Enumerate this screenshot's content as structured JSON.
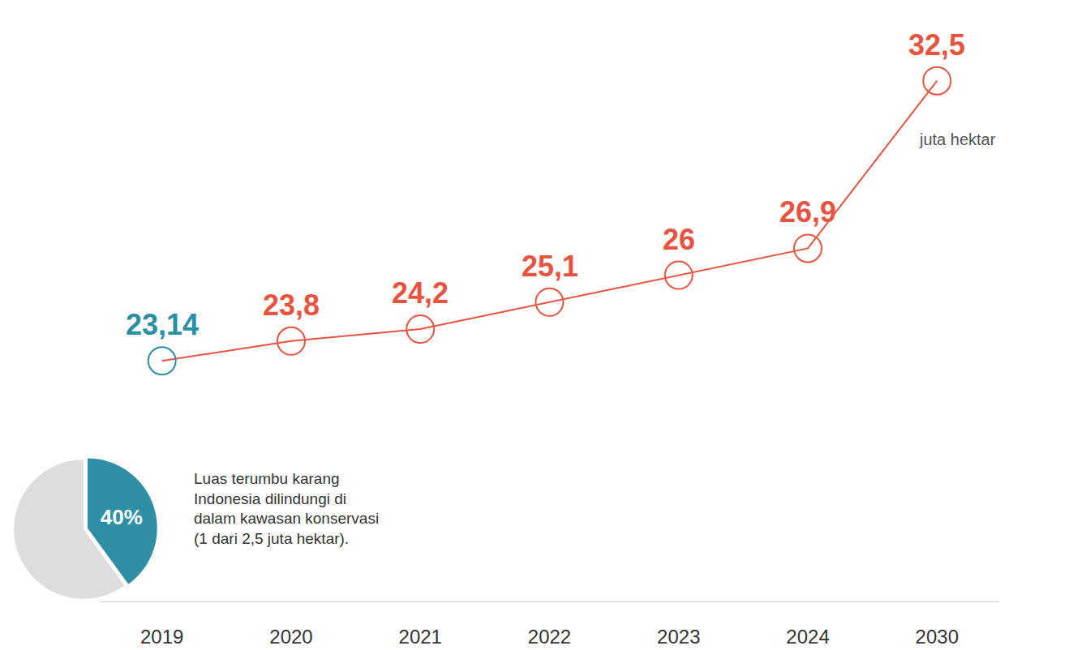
{
  "chart_data": [
    {
      "type": "line",
      "categories": [
        "2019",
        "2020",
        "2021",
        "2022",
        "2023",
        "2024",
        "2030"
      ],
      "values": [
        23.14,
        23.8,
        24.2,
        25.1,
        26,
        26.9,
        32.5
      ],
      "value_labels": [
        "23,14",
        "23,8",
        "24,2",
        "25,1",
        "26",
        "26,9",
        "32,5"
      ],
      "color": "#e8533f",
      "colors": [
        "#2b8fa3",
        "#e8533f",
        "#e8533f",
        "#e8533f",
        "#e8533f",
        "#e8533f",
        "#e8533f"
      ],
      "marker": "open circle",
      "data_labels": true,
      "tick_labels": "x",
      "ylim": [
        15.1,
        35.2
      ],
      "unit": "juta hektar",
      "grid": false
    },
    {
      "type": "pie",
      "values": [
        40,
        60
      ],
      "value_labels": [
        "40%",
        null
      ],
      "colors": [
        "#2e8fa5",
        "#dddddd"
      ],
      "caption": "Luas terumbu karang Indonesia dilindungi di dalam kawasan konservasi (1 dari 2,5 juta hektar)."
    }
  ]
}
